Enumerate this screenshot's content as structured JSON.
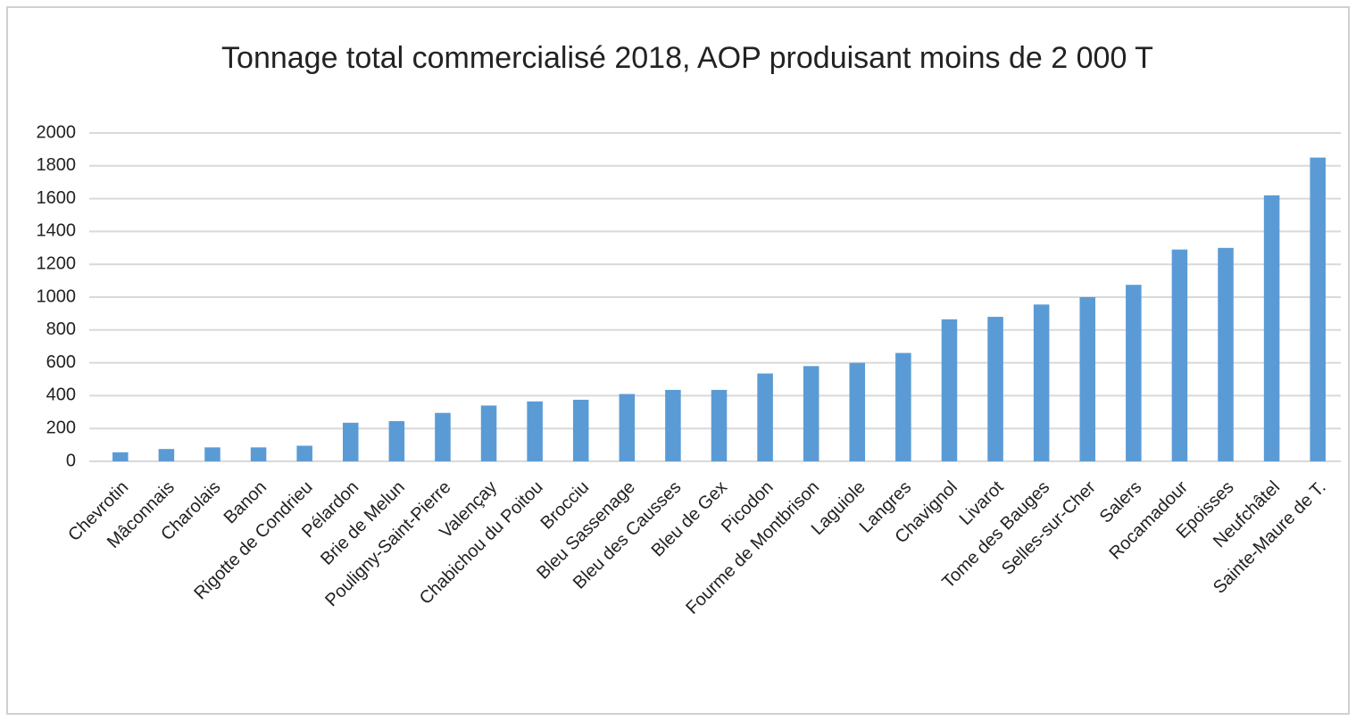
{
  "chart_data": {
    "type": "bar",
    "title": "Tonnage total commercialisé 2018, AOP produisant moins de 2 000 T",
    "categories": [
      "Chevrotin",
      "Mâconnais",
      "Charolais",
      "Banon",
      "Rigotte de Condrieu",
      "Pélardon",
      "Brie de Melun",
      "Pouligny-Saint-Pierre",
      "Valençay",
      "Chabichou du Poitou",
      "Brocciu",
      "Bleu Sassenage",
      "Bleu des Causses",
      "Bleu de Gex",
      "Picodon",
      "Fourme de Montbrison",
      "Laguiole",
      "Langres",
      "Chavignol",
      "Livarot",
      "Tome des Bauges",
      "Selles-sur-Cher",
      "Salers",
      "Rocamadour",
      "Epoisses",
      "Neufchâtel",
      "Sainte-Maure de T."
    ],
    "values": [
      55,
      75,
      85,
      85,
      95,
      235,
      245,
      295,
      340,
      365,
      375,
      410,
      435,
      435,
      535,
      580,
      600,
      660,
      865,
      880,
      955,
      1000,
      1075,
      1290,
      1300,
      1620,
      1850
    ],
    "color": "#5b9bd5",
    "ylim": [
      0,
      2000
    ],
    "yticks": [
      0,
      200,
      400,
      600,
      800,
      1000,
      1200,
      1400,
      1600,
      1800,
      2000
    ],
    "grid": true
  }
}
